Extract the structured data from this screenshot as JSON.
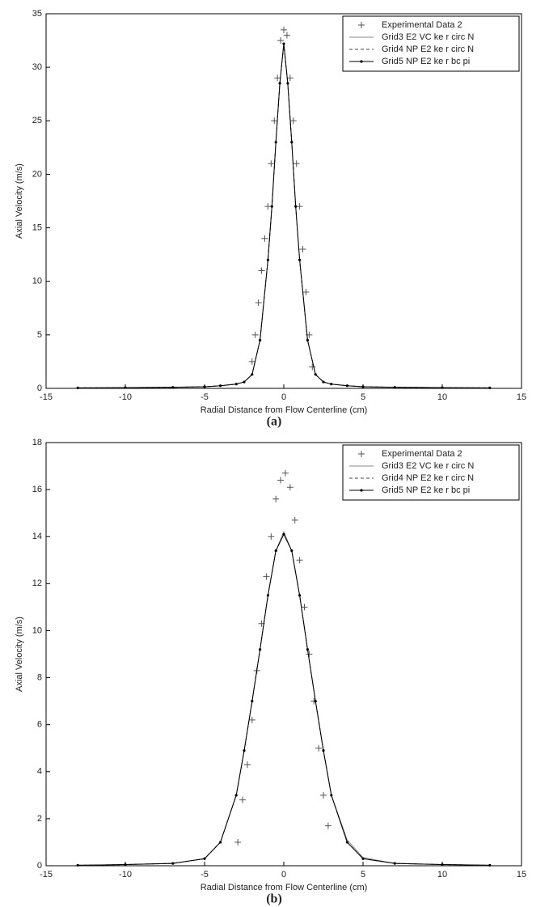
{
  "chart_data": [
    {
      "type": "line",
      "caption": "(a)",
      "xlabel": "Radial Distance from Flow Centerline (cm)",
      "ylabel": "Axial Velocity (m/s)",
      "xlim": [
        -15,
        15
      ],
      "xticks": [
        -15,
        -10,
        -5,
        0,
        5,
        10,
        15
      ],
      "ylim": [
        0,
        35
      ],
      "yticks": [
        0,
        5,
        10,
        15,
        20,
        25,
        30,
        35
      ],
      "legend": "upper right",
      "series": [
        {
          "name": "Experimental Data 2",
          "color": "#555555",
          "linestyle": "none",
          "marker": "plus",
          "x": [
            -2,
            -1.8,
            -1.6,
            -1.4,
            -1.2,
            -1,
            -0.8,
            -0.6,
            -0.4,
            -0.2,
            0,
            0.2,
            0.4,
            0.6,
            0.8,
            1,
            1.2,
            1.4,
            1.6,
            1.8
          ],
          "values": [
            2.5,
            5,
            8,
            11,
            14,
            17,
            21,
            25,
            29,
            32.5,
            33.5,
            33,
            29,
            25,
            21,
            17,
            13,
            9,
            5,
            2
          ]
        },
        {
          "name": "Grid3 E2 VC ke r circ N",
          "color": "#888888",
          "linestyle": "solid",
          "marker": "none",
          "x": [
            -13,
            -10,
            -7,
            -5,
            -4,
            -3,
            -2.5,
            -2,
            -1.5,
            -1,
            -0.75,
            -0.5,
            -0.25,
            0,
            0.25,
            0.5,
            0.75,
            1,
            1.5,
            2,
            2.5,
            3,
            4,
            5,
            7,
            10,
            13
          ],
          "values": [
            0.05,
            0.07,
            0.1,
            0.15,
            0.25,
            0.4,
            0.6,
            1.3,
            4.5,
            12,
            17,
            23,
            28.5,
            32.2,
            28.5,
            23,
            17,
            12,
            4.5,
            1.3,
            0.6,
            0.4,
            0.25,
            0.15,
            0.1,
            0.07,
            0.05
          ]
        },
        {
          "name": "Grid4 NP E2 ke r circ N",
          "color": "#444444",
          "linestyle": "dashed",
          "marker": "none",
          "x": [
            -13,
            -10,
            -7,
            -5,
            -4,
            -3,
            -2.5,
            -2,
            -1.5,
            -1,
            -0.75,
            -0.5,
            -0.25,
            0,
            0.25,
            0.5,
            0.75,
            1,
            1.5,
            2,
            2.5,
            3,
            4,
            5,
            7,
            10,
            13
          ],
          "values": [
            0.05,
            0.07,
            0.1,
            0.15,
            0.25,
            0.4,
            0.6,
            1.3,
            4.5,
            12,
            17,
            23,
            28.5,
            32.2,
            28.5,
            23,
            17,
            12,
            4.5,
            1.3,
            0.6,
            0.4,
            0.25,
            0.15,
            0.1,
            0.07,
            0.05
          ]
        },
        {
          "name": "Grid5 NP E2 ke r bc pi",
          "color": "#000000",
          "linestyle": "solid",
          "marker": "dot",
          "x": [
            -13,
            -10,
            -7,
            -5,
            -4,
            -3,
            -2.5,
            -2,
            -1.5,
            -1,
            -0.75,
            -0.5,
            -0.25,
            0,
            0.25,
            0.5,
            0.75,
            1,
            1.5,
            2,
            2.5,
            3,
            4,
            5,
            7,
            10,
            13
          ],
          "values": [
            0.05,
            0.07,
            0.1,
            0.15,
            0.25,
            0.4,
            0.6,
            1.3,
            4.5,
            12,
            17,
            23,
            28.5,
            32.2,
            28.5,
            23,
            17,
            12,
            4.5,
            1.3,
            0.6,
            0.4,
            0.25,
            0.15,
            0.1,
            0.07,
            0.05
          ]
        }
      ]
    },
    {
      "type": "line",
      "caption": "(b)",
      "xlabel": "Radial Distance from Flow Centerline (cm)",
      "ylabel": "Axial Velocity (m/s)",
      "xlim": [
        -15,
        15
      ],
      "xticks": [
        -15,
        -10,
        -5,
        0,
        5,
        10,
        15
      ],
      "ylim": [
        0,
        18
      ],
      "yticks": [
        0,
        2,
        4,
        6,
        8,
        10,
        12,
        14,
        16,
        18
      ],
      "legend": "upper right",
      "series": [
        {
          "name": "Experimental Data 2",
          "color": "#555555",
          "linestyle": "none",
          "marker": "plus",
          "x": [
            -2.9,
            -2.6,
            -2.3,
            -2,
            -1.7,
            -1.4,
            -1.1,
            -0.8,
            -0.5,
            -0.2,
            0.1,
            0.4,
            0.7,
            1,
            1.3,
            1.6,
            1.9,
            2.2,
            2.5,
            2.8
          ],
          "values": [
            1,
            2.8,
            4.3,
            6.2,
            8.3,
            10.3,
            12.3,
            14,
            15.6,
            16.4,
            16.7,
            16.1,
            14.7,
            13,
            11,
            9,
            7,
            5,
            3,
            1.7
          ]
        },
        {
          "name": "Grid3 E2 VC ke r circ N",
          "color": "#888888",
          "linestyle": "solid",
          "marker": "none",
          "x": [
            -13,
            -10,
            -7,
            -5,
            -4,
            -3,
            -2.5,
            -2,
            -1.5,
            -1,
            -0.5,
            0,
            0.5,
            1,
            1.5,
            2,
            2.5,
            3,
            4,
            5,
            7,
            10,
            13
          ],
          "values": [
            0.02,
            0.05,
            0.1,
            0.3,
            1,
            3,
            4.9,
            7,
            9.2,
            11.5,
            13.4,
            14.2,
            13.4,
            11.5,
            9.2,
            7,
            4.9,
            3,
            1.1,
            0.35,
            0.1,
            0.05,
            0.02
          ]
        },
        {
          "name": "Grid4 NP E2 ke r circ N",
          "color": "#444444",
          "linestyle": "dashed",
          "marker": "none",
          "x": [
            -13,
            -10,
            -7,
            -5,
            -4,
            -3,
            -2.5,
            -2,
            -1.5,
            -1,
            -0.5,
            0,
            0.5,
            1,
            1.5,
            2,
            2.5,
            3,
            4,
            5,
            7,
            10,
            13
          ],
          "values": [
            0.02,
            0.05,
            0.1,
            0.3,
            1,
            3,
            4.9,
            7,
            9.2,
            11.5,
            13.4,
            14.1,
            13.4,
            11.5,
            9.2,
            7,
            4.9,
            3,
            1,
            0.3,
            0.1,
            0.05,
            0.02
          ]
        },
        {
          "name": "Grid5 NP E2 ke r bc pi",
          "color": "#000000",
          "linestyle": "solid",
          "marker": "dot",
          "x": [
            -13,
            -10,
            -7,
            -5,
            -4,
            -3,
            -2.5,
            -2,
            -1.5,
            -1,
            -0.5,
            0,
            0.5,
            1,
            1.5,
            2,
            2.5,
            3,
            4,
            5,
            7,
            10,
            13
          ],
          "values": [
            0.02,
            0.05,
            0.1,
            0.3,
            1,
            3,
            4.9,
            7,
            9.2,
            11.5,
            13.4,
            14.1,
            13.4,
            11.5,
            9.2,
            7,
            4.9,
            3,
            1,
            0.3,
            0.1,
            0.05,
            0.02
          ]
        }
      ]
    }
  ]
}
